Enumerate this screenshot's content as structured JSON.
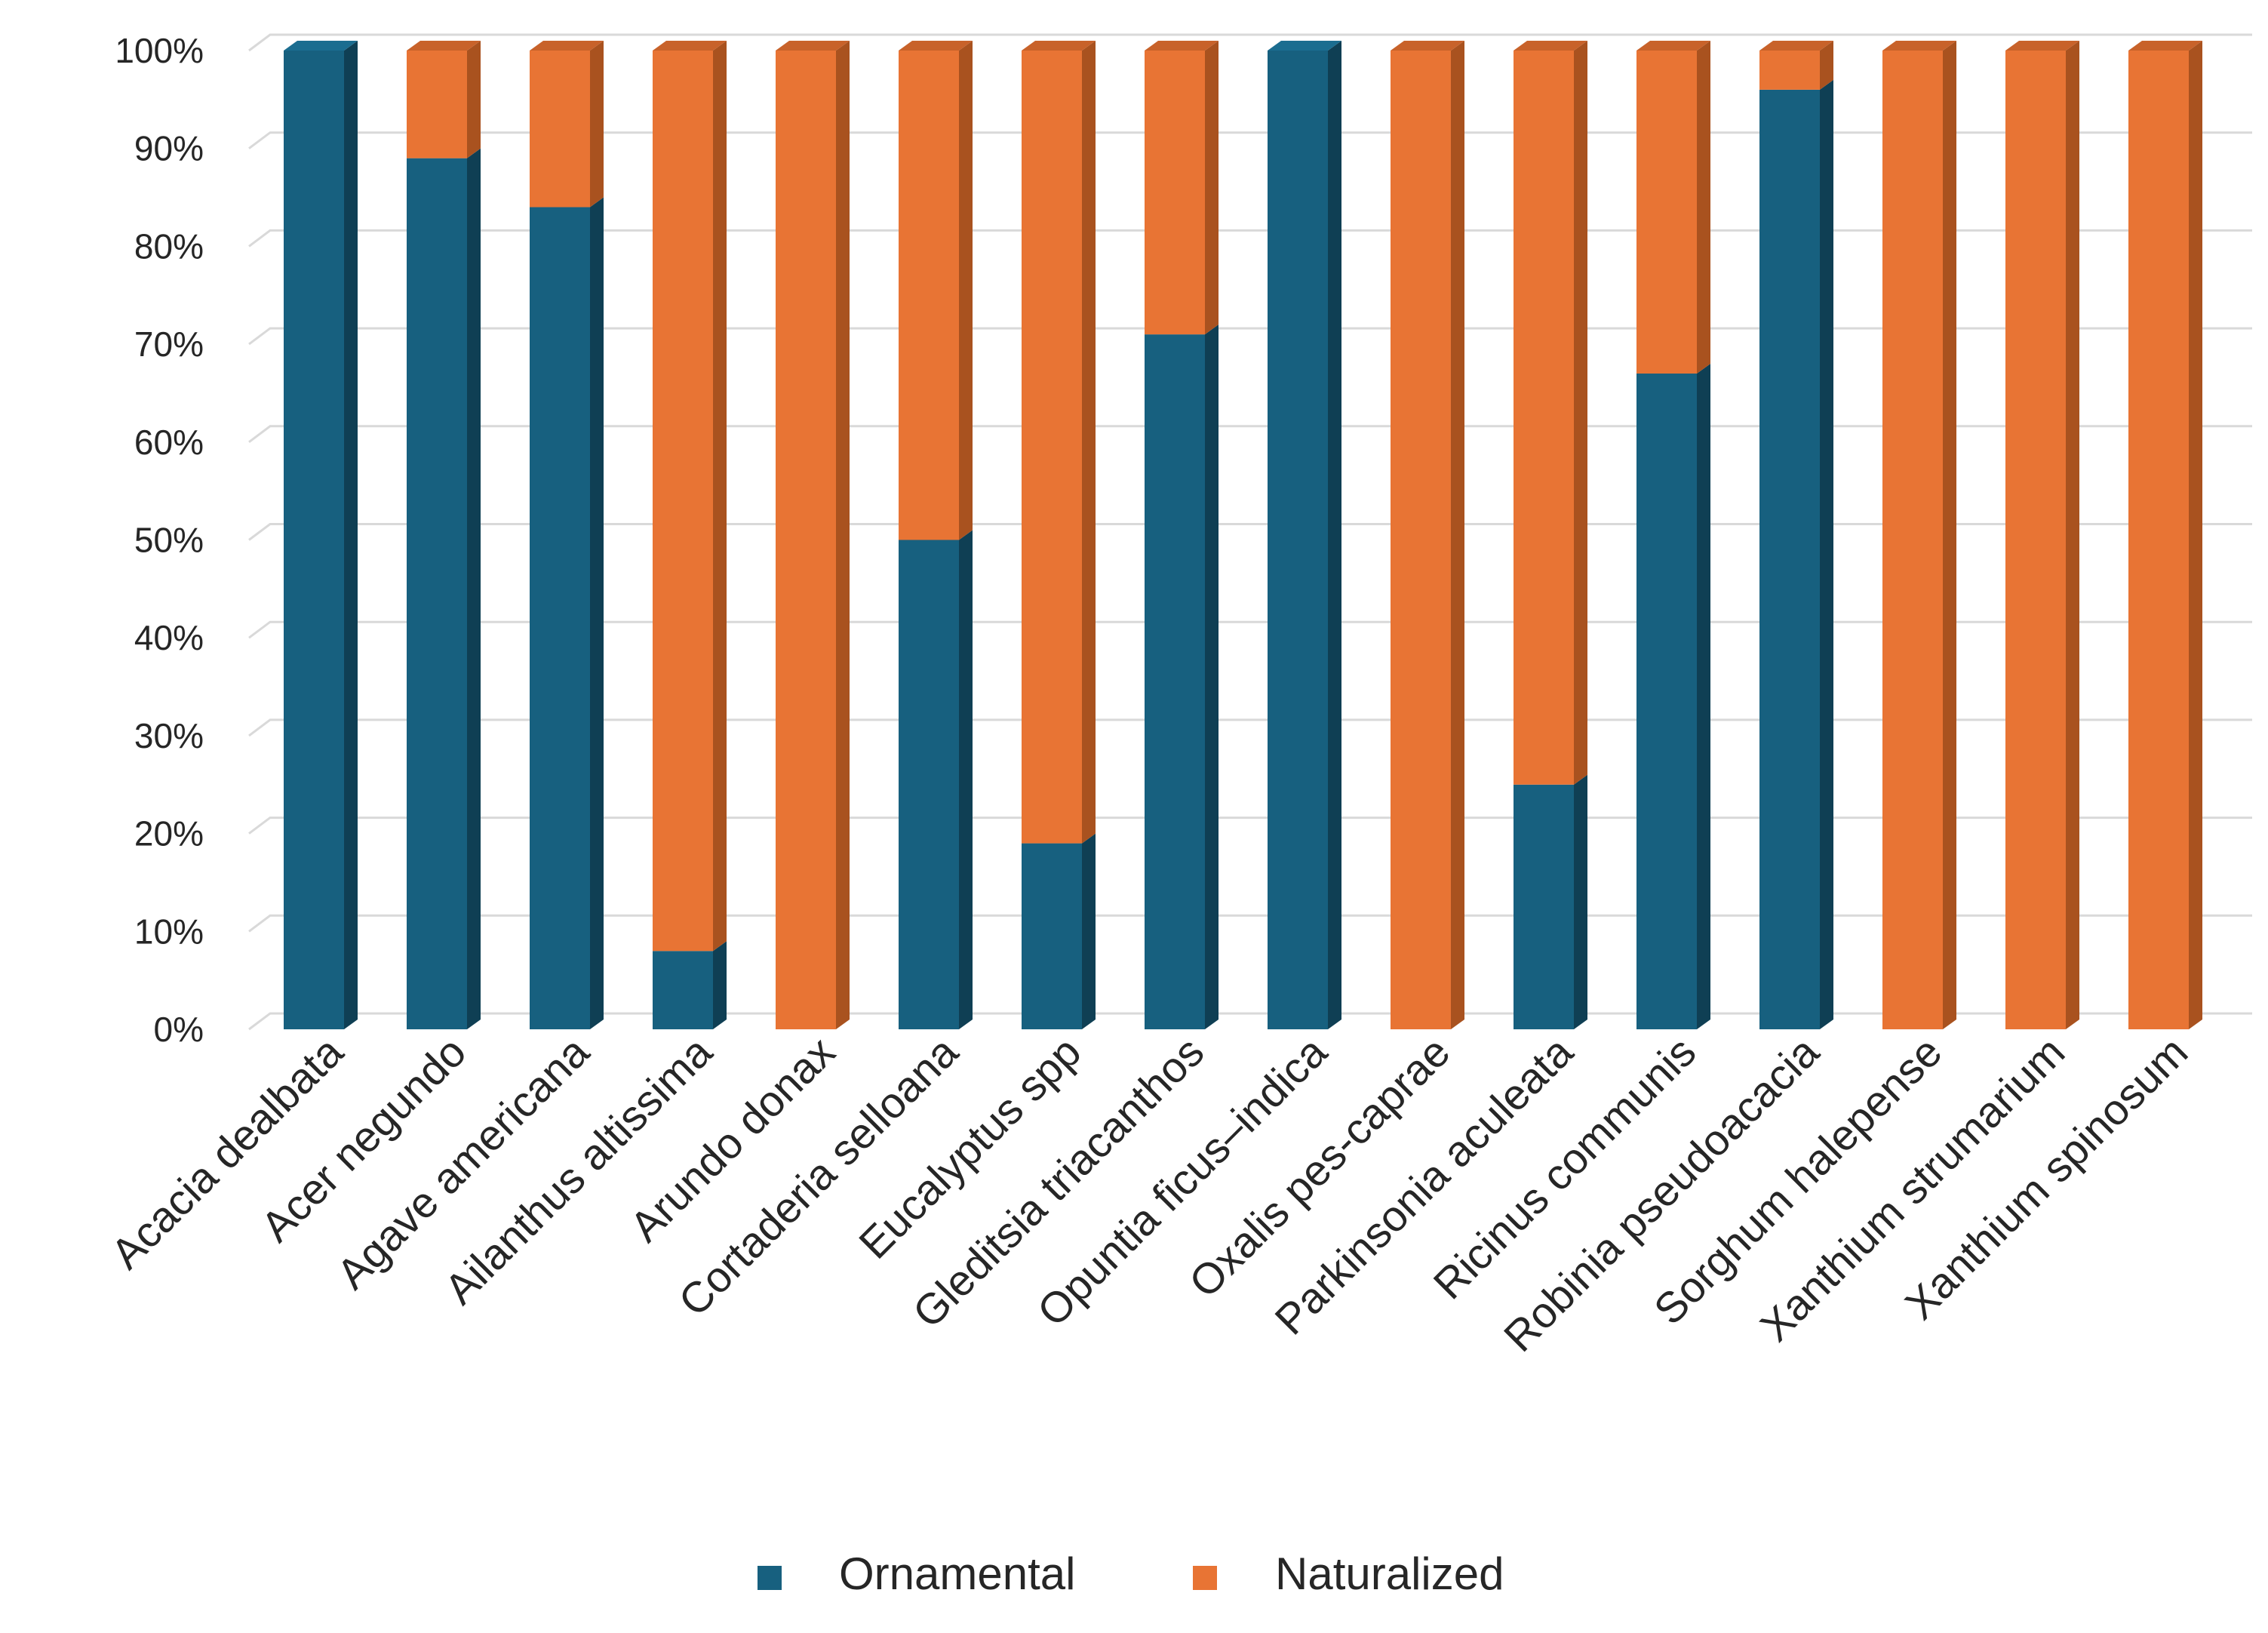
{
  "chart_data": {
    "type": "bar",
    "stacked": "percent",
    "style": "3d-column",
    "categories": [
      "Acacia dealbata",
      "Acer negundo",
      "Agave americana",
      "Ailanthus altissima",
      "Arundo donax",
      "Cortaderia selloana",
      "Eucalyptus spp",
      "Gleditsia triacanthos",
      "Opuntia ficus–indica",
      "Oxalis pes-caprae",
      "Parkinsonia aculeata",
      "Ricinus communis",
      "Robinia pseudoacacia",
      "Sorghum halepense",
      "Xanthium strumarium",
      "Xanthium spinosum"
    ],
    "series": [
      {
        "name": "Ornamental",
        "color": "#17607f",
        "side_color": "#0f3f54",
        "top_color": "#1b6d90",
        "values": [
          100,
          89,
          84,
          8,
          0,
          50,
          19,
          71,
          100,
          0,
          25,
          67,
          96,
          0,
          0,
          0
        ]
      },
      {
        "name": "Naturalized",
        "color": "#e87434",
        "side_color": "#a9521f",
        "top_color": "#c8622a",
        "values": [
          0,
          11,
          16,
          92,
          100,
          50,
          81,
          29,
          0,
          100,
          75,
          33,
          4,
          100,
          100,
          100
        ]
      }
    ],
    "ylim": [
      0,
      100
    ],
    "yticks": [
      "0%",
      "10%",
      "20%",
      "30%",
      "40%",
      "50%",
      "60%",
      "70%",
      "80%",
      "90%",
      "100%"
    ],
    "grid": true,
    "gridline_color": "#d9d9d9",
    "legend_position": "bottom",
    "title": "",
    "xlabel": "",
    "ylabel": ""
  }
}
